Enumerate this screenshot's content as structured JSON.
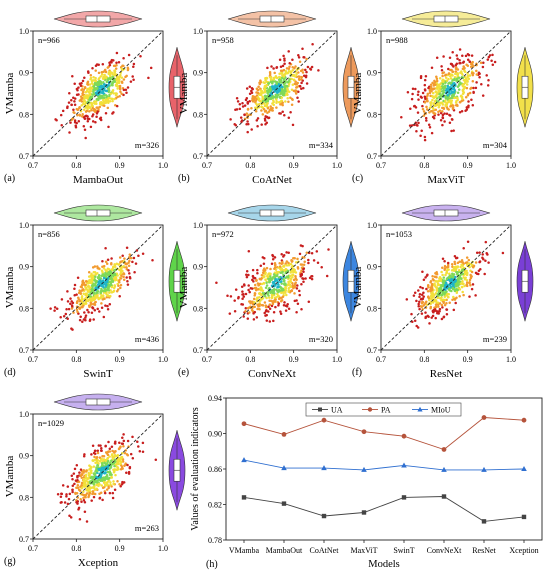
{
  "scatter_panels": [
    {
      "panel": "(a)",
      "xlabel": "MambaOut",
      "ylabel": "VMamba",
      "n": "n=966",
      "m": "m=326",
      "xlim": [
        0.7,
        1.0
      ],
      "ylim": [
        0.7,
        1.0
      ],
      "xticks": [
        "0.7",
        "0.8",
        "0.9",
        "1.0"
      ],
      "yticks": [
        "0.7",
        "0.8",
        "0.9",
        "1.0"
      ],
      "violin_color": "#e8636a",
      "violin_top_color": "#f2a7a8",
      "spread": 0.022
    },
    {
      "panel": "(b)",
      "xlabel": "CoAtNet",
      "ylabel": "VMamba",
      "n": "n=958",
      "m": "m=334",
      "xlim": [
        0.7,
        1.0
      ],
      "ylim": [
        0.7,
        1.0
      ],
      "xticks": [
        "0.7",
        "0.8",
        "0.9",
        "1.0"
      ],
      "yticks": [
        "0.7",
        "0.8",
        "0.9",
        "1.0"
      ],
      "violin_color": "#ed9a5c",
      "violin_top_color": "#f4c2a6",
      "spread": 0.022
    },
    {
      "panel": "(c)",
      "xlabel": "MaxViT",
      "ylabel": "VMamba",
      "n": "n=988",
      "m": "m=304",
      "xlim": [
        0.7,
        1.0
      ],
      "ylim": [
        0.7,
        1.0
      ],
      "xticks": [
        "0.7",
        "0.8",
        "0.9",
        "1.0"
      ],
      "yticks": [
        "0.7",
        "0.8",
        "0.9",
        "1.0"
      ],
      "violin_color": "#f2e04a",
      "violin_top_color": "#f6ec98",
      "spread": 0.026
    },
    {
      "panel": "(d)",
      "xlabel": "SwinT",
      "ylabel": "VMamba",
      "n": "n=856",
      "m": "m=436",
      "xlim": [
        0.7,
        1.0
      ],
      "ylim": [
        0.7,
        1.0
      ],
      "xticks": [
        "0.7",
        "0.8",
        "0.9",
        "1.0"
      ],
      "yticks": [
        "0.7",
        "0.8",
        "0.9",
        "1.0"
      ],
      "violin_color": "#5fd44a",
      "violin_top_color": "#aee8a0",
      "spread": 0.02
    },
    {
      "panel": "(e)",
      "xlabel": "ConvNeXt",
      "ylabel": "VMamba",
      "n": "n=972",
      "m": "m=320",
      "xlim": [
        0.7,
        1.0
      ],
      "ylim": [
        0.7,
        1.0
      ],
      "xticks": [
        "0.7",
        "0.8",
        "0.9",
        "1.0"
      ],
      "yticks": [
        "0.7",
        "0.8",
        "0.9",
        "1.0"
      ],
      "violin_color": "#3c86e0",
      "violin_top_color": "#a7d6ea",
      "spread": 0.028
    },
    {
      "panel": "(f)",
      "xlabel": "ResNet",
      "ylabel": "VMamba",
      "n": "n=1053",
      "m": "m=239",
      "xlim": [
        0.7,
        1.0
      ],
      "ylim": [
        0.7,
        1.0
      ],
      "xticks": [
        "0.7",
        "0.8",
        "0.9",
        "1.0"
      ],
      "yticks": [
        "0.7",
        "0.8",
        "0.9",
        "1.0"
      ],
      "violin_color": "#7a3fd6",
      "violin_top_color": "#c9b2ef",
      "spread": 0.02
    },
    {
      "panel": "(g)",
      "xlabel": "Xception",
      "ylabel": "VMamba",
      "n": "n=1029",
      "m": "m=263",
      "xlim": [
        0.7,
        1.0
      ],
      "ylim": [
        0.7,
        1.0
      ],
      "xticks": [
        "0.7",
        "0.8",
        "0.9",
        "1.0"
      ],
      "yticks": [
        "0.7",
        "0.8",
        "0.9",
        "1.0"
      ],
      "violin_color": "#8a4ae0",
      "violin_top_color": "#c6b0ef",
      "spread": 0.022
    }
  ],
  "chart_data": [
    {
      "type": "scatter",
      "note": "panels (a)-(g): per-sample accuracy of VMamba vs. each model, dashed y=x reference",
      "panels": [
        "(a)",
        "(b)",
        "(c)",
        "(d)",
        "(e)",
        "(f)",
        "(g)"
      ]
    },
    {
      "type": "line",
      "panel": "(h)",
      "categories": [
        "VMamba",
        "MambaOut",
        "CoAtNet",
        "MaxViT",
        "SwinT",
        "ConvNeXt",
        "ResNet",
        "Xception"
      ],
      "series": [
        {
          "name": "UA",
          "values": [
            0.828,
            0.821,
            0.807,
            0.811,
            0.828,
            0.829,
            0.801,
            0.806
          ],
          "color": "#444444",
          "marker": "square"
        },
        {
          "name": "PA",
          "values": [
            0.911,
            0.899,
            0.915,
            0.902,
            0.897,
            0.882,
            0.918,
            0.915
          ],
          "color": "#b5533b",
          "marker": "circle"
        },
        {
          "name": "MIoU",
          "values": [
            0.87,
            0.861,
            0.861,
            0.859,
            0.864,
            0.859,
            0.859,
            0.86
          ],
          "color": "#2f6fd0",
          "marker": "triangle"
        }
      ],
      "xlabel": "Models",
      "ylabel": "Values of evaluation indicators",
      "ylim": [
        0.78,
        0.94
      ],
      "yticks": [
        "0.78",
        "0.82",
        "0.86",
        "0.90",
        "0.94"
      ],
      "legend": "top-center"
    }
  ]
}
